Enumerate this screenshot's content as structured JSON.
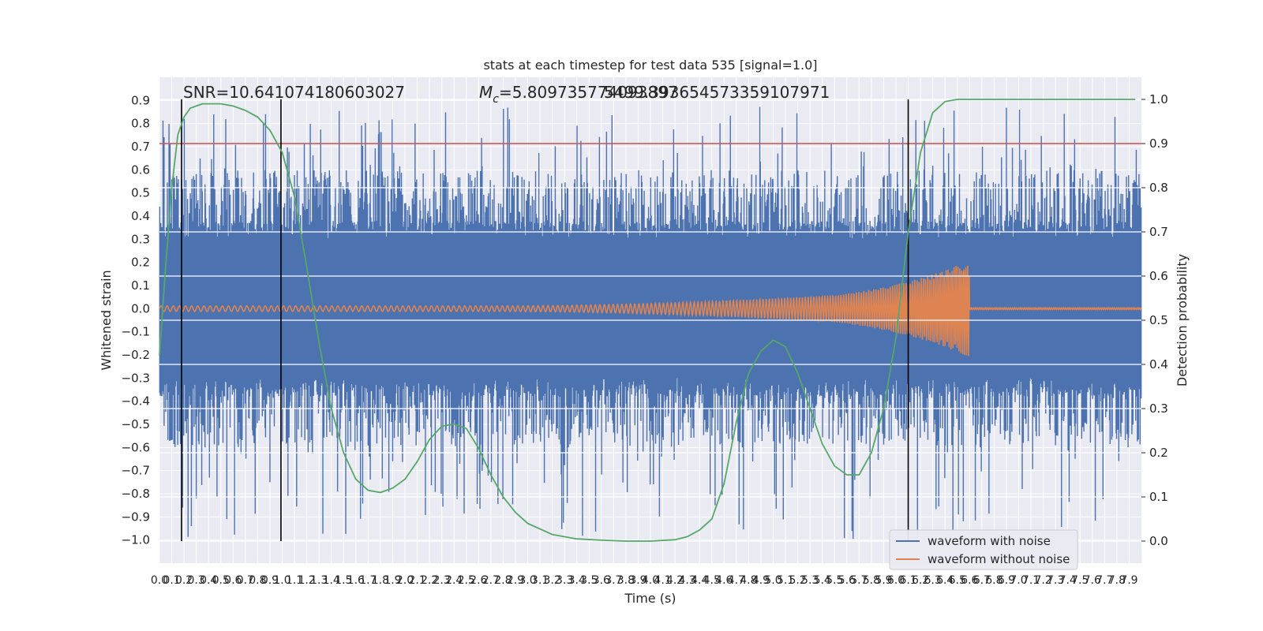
{
  "chart_data": {
    "type": "line",
    "title": "stats at each timestep for test data 535 [signal=1.0]",
    "xlabel": "Time (s)",
    "ylabel": "Whitened strain",
    "ylabel_right": "Detection probability",
    "xlim": [
      0.0,
      8.0
    ],
    "ylim": [
      -1.1,
      1.0
    ],
    "ylim_right": [
      -0.05,
      1.05
    ],
    "x_ticks": [
      0.0,
      0.1,
      0.2,
      0.3,
      0.4,
      0.5,
      0.6,
      0.7,
      0.8,
      0.9,
      1.0,
      1.1,
      1.2,
      1.3,
      1.4,
      1.5,
      1.6,
      1.7,
      1.8,
      1.9,
      2.0,
      2.1,
      2.2,
      2.3,
      2.4,
      2.5,
      2.6,
      2.7,
      2.8,
      2.9,
      3.0,
      3.1,
      3.2,
      3.3,
      3.4,
      3.5,
      3.6,
      3.7,
      3.8,
      3.9,
      4.0,
      4.1,
      4.2,
      4.3,
      4.4,
      4.5,
      4.6,
      4.7,
      4.8,
      4.9,
      5.0,
      5.1,
      5.2,
      5.3,
      5.4,
      5.5,
      5.6,
      5.7,
      5.8,
      5.9,
      6.0,
      6.1,
      6.2,
      6.3,
      6.4,
      6.5,
      6.6,
      6.7,
      6.8,
      6.9,
      7.0,
      7.1,
      7.2,
      7.3,
      7.4,
      7.5,
      7.6,
      7.7,
      7.8,
      7.9
    ],
    "y_ticks": [
      -1.0,
      -0.9,
      -0.8,
      -0.7,
      -0.6,
      -0.5,
      -0.4,
      -0.3,
      -0.2,
      -0.1,
      0.0,
      0.1,
      0.2,
      0.3,
      0.4,
      0.5,
      0.6,
      0.7,
      0.8,
      0.9
    ],
    "y_ticks_right": [
      0.0,
      0.1,
      0.2,
      0.3,
      0.4,
      0.5,
      0.6,
      0.7,
      0.8,
      0.9,
      1.0
    ],
    "annotations": {
      "snr": "SNR=10.641074180603027",
      "mc_symbol": "M",
      "mc_sub": "c",
      "mc_text": "=5.809735774093897",
      "overlap_text": "5499.393654573359107971"
    },
    "threshold": {
      "y": 0.9,
      "axis": "right",
      "color": "#c44e52"
    },
    "vertical_lines_x": [
      0.18,
      0.99,
      6.1
    ],
    "noise_envelope": {
      "core": 0.3,
      "peak_max": 0.88,
      "trough_min": -1.0
    },
    "clean_waveform": {
      "start": 0.0,
      "merger": 6.6,
      "amp_start": 0.012,
      "amp_pre_merger": 0.21,
      "post_merger_amp": 0.004
    },
    "series": [
      {
        "name": "waveform with noise",
        "color": "#4c72b0"
      },
      {
        "name": "waveform without noise",
        "color": "#dd8452"
      },
      {
        "color": "#55a868",
        "x": [
          0.0,
          0.05,
          0.1,
          0.15,
          0.2,
          0.25,
          0.3,
          0.35,
          0.4,
          0.5,
          0.6,
          0.7,
          0.8,
          0.9,
          1.0,
          1.1,
          1.2,
          1.3,
          1.4,
          1.5,
          1.6,
          1.7,
          1.8,
          1.9,
          2.0,
          2.1,
          2.2,
          2.3,
          2.4,
          2.5,
          2.6,
          2.7,
          2.8,
          2.9,
          3.0,
          3.2,
          3.4,
          3.6,
          3.8,
          4.0,
          4.2,
          4.3,
          4.4,
          4.5,
          4.6,
          4.7,
          4.8,
          4.9,
          5.0,
          5.1,
          5.2,
          5.3,
          5.4,
          5.5,
          5.6,
          5.7,
          5.8,
          5.9,
          6.0,
          6.1,
          6.2,
          6.3,
          6.4,
          6.5,
          6.6,
          6.7,
          6.8,
          7.0,
          7.5,
          7.95
        ],
        "y": [
          0.42,
          0.62,
          0.8,
          0.92,
          0.96,
          0.98,
          0.985,
          0.99,
          0.99,
          0.99,
          0.985,
          0.975,
          0.96,
          0.93,
          0.88,
          0.78,
          0.62,
          0.45,
          0.3,
          0.2,
          0.14,
          0.115,
          0.11,
          0.12,
          0.14,
          0.18,
          0.23,
          0.26,
          0.265,
          0.255,
          0.21,
          0.15,
          0.1,
          0.065,
          0.04,
          0.015,
          0.005,
          0.002,
          0.0,
          0.0,
          0.003,
          0.01,
          0.025,
          0.05,
          0.13,
          0.27,
          0.38,
          0.43,
          0.455,
          0.44,
          0.38,
          0.3,
          0.22,
          0.17,
          0.15,
          0.15,
          0.2,
          0.3,
          0.46,
          0.7,
          0.88,
          0.97,
          0.995,
          1.0,
          1.0,
          1.0,
          1.0,
          1.0,
          1.0,
          1.0
        ]
      }
    ],
    "legend_position": "lower right"
  }
}
